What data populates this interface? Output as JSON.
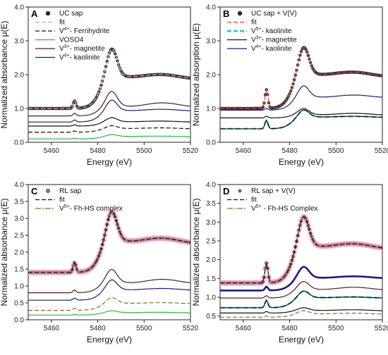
{
  "chart_data": [
    {
      "type": "line",
      "panel_label": "A",
      "xlabel": "Energy (eV)",
      "ylabel": "Normalized absorbance μ(E)",
      "xlim": [
        5450,
        5520
      ],
      "ylim": [
        0,
        4.0
      ],
      "xticks": [
        5460,
        5480,
        5500,
        5520
      ],
      "yticks": [
        0.0,
        1.0,
        2.0,
        3.0,
        4.0
      ],
      "legend_position": "top-center",
      "legend": [
        {
          "base": "UC sap",
          "sup": "",
          "tail": "",
          "style": "dots",
          "color": "#2b2b2b"
        },
        {
          "base": "fit",
          "sup": "",
          "tail": "",
          "style": "dashed",
          "color": "#e8a0a0"
        },
        {
          "base": "V",
          "sup": "4+",
          "tail": "- Ferrihydrite",
          "style": "dashed",
          "color": "#111111"
        },
        {
          "base": "VOSO4",
          "sup": "",
          "tail": "",
          "style": "solid",
          "color": "#22bb44"
        },
        {
          "base": "V",
          "sup": "3+",
          "tail": "- magnetite",
          "style": "solid",
          "color": "#5a1a1a"
        },
        {
          "base": "V",
          "sup": "4+",
          "tail": "- kaolinite",
          "style": "solid",
          "color": "#1a1a8a"
        }
      ],
      "series": [
        {
          "offset": 1.0,
          "kind": "fit",
          "color": "#e8a0a0",
          "dash": true,
          "data": true,
          "pre": 0.02,
          "peak": 1.3,
          "post": 0.98,
          "pre_amp": 0.22,
          "post_wiggle": 0.04
        },
        {
          "offset": 0.78,
          "kind": "std",
          "color": "#5a1a1a",
          "pre": 0.0,
          "peak": 0.62,
          "post": 0.34,
          "pre_amp": 0.08,
          "post_wiggle": 0.05
        },
        {
          "offset": 0.6,
          "kind": "std",
          "color": "#1a1a8a",
          "pre": 0.0,
          "peak": 0.48,
          "post": 0.36,
          "pre_amp": 0.06,
          "post_wiggle": 0.02
        },
        {
          "offset": 0.48,
          "kind": "std",
          "color": "#111111",
          "dash": false,
          "pre": 0.0,
          "peak": 0.18,
          "post": 0.14,
          "pre_amp": 0.04,
          "post_wiggle": 0.01
        },
        {
          "offset": 0.3,
          "kind": "std",
          "color": "#111111",
          "dash": true,
          "pre": 0.0,
          "peak": 0.12,
          "post": 0.12,
          "pre_amp": 0.03,
          "post_wiggle": 0.01
        },
        {
          "offset": 0.1,
          "kind": "std",
          "color": "#22bb44",
          "pre": 0.0,
          "peak": 0.08,
          "post": 0.08,
          "pre_amp": 0.02,
          "post_wiggle": 0.005
        }
      ]
    },
    {
      "type": "line",
      "panel_label": "B",
      "xlabel": "Energy (eV)",
      "ylabel": "Normalized absorption μ(E)",
      "xlim": [
        5450,
        5520
      ],
      "ylim": [
        0,
        4.0
      ],
      "xticks": [
        5460,
        5480,
        5500,
        5520
      ],
      "yticks": [
        0.0,
        1.0,
        2.0,
        3.0,
        4.0
      ],
      "legend_position": "top-center",
      "legend": [
        {
          "base": "UC sap + V(V)",
          "sup": "",
          "tail": "",
          "style": "dots",
          "color": "#2b2b2b"
        },
        {
          "base": "fit",
          "sup": "",
          "tail": "",
          "style": "dashed",
          "color": "#e53a3a"
        },
        {
          "base": "V",
          "sup": "5+",
          "tail": "- kaolinite",
          "style": "thickdash",
          "color": "#3ec6e0"
        },
        {
          "base": "V",
          "sup": "3+",
          "tail": "- magnetite",
          "style": "solid",
          "color": "#111111"
        },
        {
          "base": "V",
          "sup": "4+",
          "tail": "- kaolinite",
          "style": "solid",
          "color": "#1a1a8a"
        }
      ],
      "series": [
        {
          "offset": 1.0,
          "kind": "fit",
          "color": "#e53a3a",
          "dash": true,
          "data": true,
          "pre": 0.0,
          "peak": 1.27,
          "post": 1.05,
          "pre_amp": 0.55,
          "post_wiggle": 0.04
        },
        {
          "offset": 0.95,
          "kind": "std",
          "color": "#1a1a8a",
          "pre": 0.0,
          "peak": 0.5,
          "post": 0.42,
          "pre_amp": 0.05,
          "post_wiggle": 0.03
        },
        {
          "offset": 0.72,
          "kind": "std",
          "color": "#111111",
          "pre": 0.0,
          "peak": 0.25,
          "post": 0.12,
          "pre_amp": 0.05,
          "post_wiggle": 0.02
        },
        {
          "offset": 0.4,
          "kind": "std",
          "color": "#3ec6e0",
          "dash": true,
          "thick": true,
          "pre": 0.0,
          "peak": 0.34,
          "post": 0.36,
          "pre_amp": 0.25,
          "post_wiggle": 0.01
        },
        {
          "offset": 0.4,
          "kind": "std",
          "color": "#111111",
          "pre": 0.0,
          "peak": 0.34,
          "post": 0.36,
          "pre_amp": 0.25,
          "post_wiggle": 0.01
        }
      ]
    },
    {
      "type": "line",
      "panel_label": "C",
      "xlabel": "Energy (eV)",
      "ylabel": "Normalized absorbance μ(E)",
      "xlim": [
        5450,
        5520
      ],
      "ylim": [
        0,
        4.0
      ],
      "xticks": [
        5460,
        5480,
        5500,
        5520
      ],
      "yticks": [
        0.0,
        0.5,
        1.0,
        1.5,
        2.0,
        2.5,
        3.0,
        3.5,
        4.0
      ],
      "legend_position": "top-center",
      "legend": [
        {
          "base": "RL sap",
          "sup": "",
          "tail": "",
          "style": "browndots",
          "color": "#9c6b45"
        },
        {
          "base": "fit",
          "sup": "",
          "tail": "",
          "style": "dashed",
          "color": "#111111"
        },
        {
          "base": "V",
          "sup": "5+",
          "tail": "- Fh-HS complex",
          "style": "dashdot",
          "color": "#8b6a2a"
        }
      ],
      "series": [
        {
          "offset": 1.4,
          "kind": "fit",
          "color": "#111111",
          "dash": true,
          "data": true,
          "pink": true,
          "pre": 0.0,
          "peak": 1.35,
          "post": 0.98,
          "pre_amp": 0.28,
          "post_wiggle": 0.05
        },
        {
          "offset": 0.8,
          "kind": "std",
          "color": "#5a1a1a",
          "pre": 0.0,
          "peak": 0.55,
          "post": 0.35,
          "pre_amp": 0.08,
          "post_wiggle": 0.05
        },
        {
          "offset": 0.58,
          "kind": "std",
          "color": "#1a1a8a",
          "pre": 0.0,
          "peak": 0.45,
          "post": 0.33,
          "pre_amp": 0.06,
          "post_wiggle": 0.02
        },
        {
          "offset": 0.28,
          "kind": "std",
          "color": "#8b6a2a",
          "dash": true,
          "pre": 0.0,
          "peak": 0.26,
          "post": 0.22,
          "pre_amp": 0.06,
          "post_wiggle": 0.01
        },
        {
          "offset": 0.14,
          "kind": "std",
          "color": "#22bb44",
          "pre": 0.0,
          "peak": 0.08,
          "post": 0.08,
          "pre_amp": 0.02,
          "post_wiggle": 0.005
        }
      ]
    },
    {
      "type": "line",
      "panel_label": "D",
      "xlabel": "Energy (eV)",
      "ylabel": "Normalized absorbance μ(E)",
      "xlim": [
        5450,
        5520
      ],
      "ylim": [
        0.4,
        4.0
      ],
      "xticks": [
        5460,
        5480,
        5500,
        5520
      ],
      "yticks": [
        0.5,
        1.0,
        1.5,
        2.0,
        2.5,
        3.0,
        3.5,
        4.0
      ],
      "legend_position": "top-center",
      "legend": [
        {
          "base": "RL sap + V(V)",
          "sup": "",
          "tail": "",
          "style": "pinkdots",
          "color": "#e86a8a"
        },
        {
          "base": "fit",
          "sup": "",
          "tail": "",
          "style": "dashed",
          "color": "#111111"
        },
        {
          "base": "V",
          "sup": "5+",
          "tail": " - Fh-HS Complex",
          "style": "dashdot",
          "color": "#8b6a2a"
        }
      ],
      "series": [
        {
          "offset": 1.38,
          "kind": "fit",
          "color": "#111111",
          "dash": true,
          "data": true,
          "pink": true,
          "pre": 0.0,
          "peak": 1.25,
          "post": 1.02,
          "pre_amp": 0.52,
          "post_wiggle": 0.04
        },
        {
          "offset": 1.18,
          "kind": "std",
          "color": "#1a1a8a",
          "thick": true,
          "pre": 0.0,
          "peak": 0.45,
          "post": 0.36,
          "pre_amp": 0.1,
          "post_wiggle": 0.02
        },
        {
          "offset": 0.98,
          "kind": "std",
          "color": "#5a1a1a",
          "pre": 0.0,
          "peak": 0.3,
          "post": 0.26,
          "pre_amp": 0.06,
          "post_wiggle": 0.03
        },
        {
          "offset": 0.72,
          "kind": "std",
          "color": "#3ec6e0",
          "dash": true,
          "thick": true,
          "pre": 0.0,
          "peak": 0.28,
          "post": 0.28,
          "pre_amp": 0.2,
          "post_wiggle": 0.01
        },
        {
          "offset": 0.72,
          "kind": "std",
          "color": "#111111",
          "pre": 0.0,
          "peak": 0.28,
          "post": 0.28,
          "pre_amp": 0.2,
          "post_wiggle": 0.01
        },
        {
          "offset": 0.58,
          "kind": "std",
          "color": "#111111",
          "pre": 0.0,
          "peak": 0.1,
          "post": 0.08,
          "pre_amp": 0.04,
          "post_wiggle": 0.01
        },
        {
          "offset": 0.47,
          "kind": "std",
          "color": "#8b6a2a",
          "dash": true,
          "pre": 0.0,
          "peak": 0.12,
          "post": 0.1,
          "pre_amp": 0.03,
          "post_wiggle": 0.01
        }
      ]
    }
  ]
}
